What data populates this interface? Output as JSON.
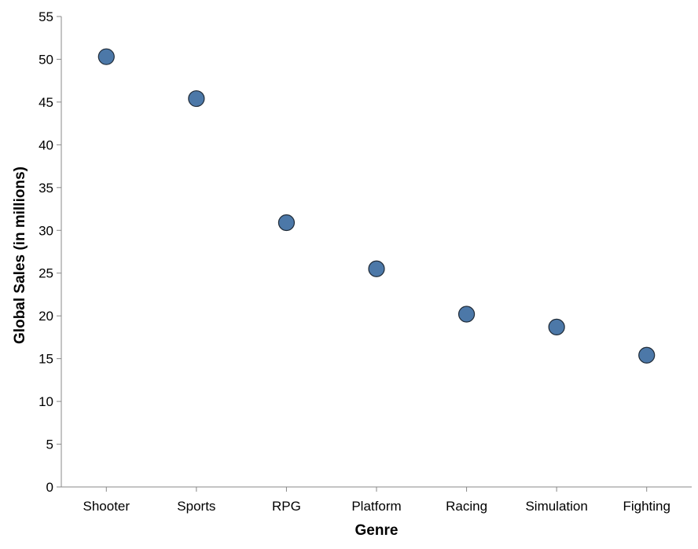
{
  "chart_data": {
    "type": "scatter",
    "title": "",
    "xlabel": "Genre",
    "ylabel": "Global Sales (in millions)",
    "categories": [
      "Shooter",
      "Sports",
      "RPG",
      "Platform",
      "Racing",
      "Simulation",
      "Fighting"
    ],
    "values": [
      50.3,
      45.4,
      30.9,
      25.5,
      20.2,
      18.7,
      15.4
    ],
    "ylim": [
      0,
      55
    ],
    "yticks": [
      0,
      5,
      10,
      15,
      20,
      25,
      30,
      35,
      40,
      45,
      50,
      55
    ],
    "grid": false,
    "legend": "none",
    "colors": {
      "point_fill": "#4c78a8",
      "point_stroke": "#1f2a36",
      "axis": "#888888"
    }
  }
}
